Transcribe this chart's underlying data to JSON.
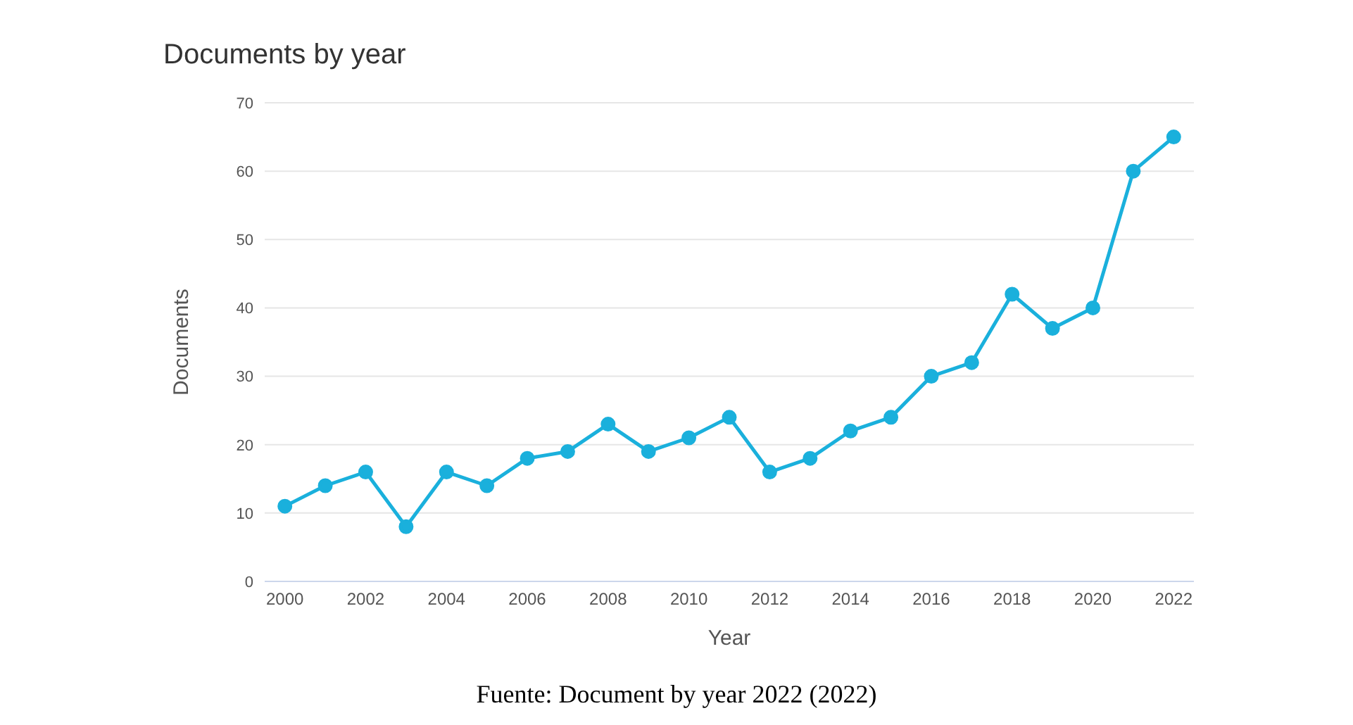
{
  "chart_data": {
    "type": "line",
    "title": "Documents by year",
    "xlabel": "Year",
    "ylabel": "Documents",
    "x": [
      2000,
      2001,
      2002,
      2003,
      2004,
      2005,
      2006,
      2007,
      2008,
      2009,
      2010,
      2011,
      2012,
      2013,
      2014,
      2015,
      2016,
      2017,
      2018,
      2019,
      2020,
      2021,
      2022
    ],
    "series": [
      {
        "color": "#1ab0dc",
        "values": [
          11,
          14,
          16,
          8,
          16,
          14,
          18,
          19,
          23,
          19,
          21,
          24,
          16,
          18,
          22,
          24,
          30,
          32,
          42,
          37,
          40,
          60,
          65
        ]
      }
    ],
    "xlim": [
      1999.5,
      2022.5
    ],
    "xticks": [
      2000,
      2002,
      2004,
      2006,
      2008,
      2010,
      2012,
      2014,
      2016,
      2018,
      2020,
      2022
    ],
    "ylim": [
      0,
      70
    ],
    "yticks": [
      0,
      10,
      20,
      30,
      40,
      50,
      60,
      70
    ],
    "grid": "y",
    "marker": "circle",
    "line_style": "solid",
    "annotations": [
      "Fuente: Document by year 2022 (2022)"
    ]
  }
}
